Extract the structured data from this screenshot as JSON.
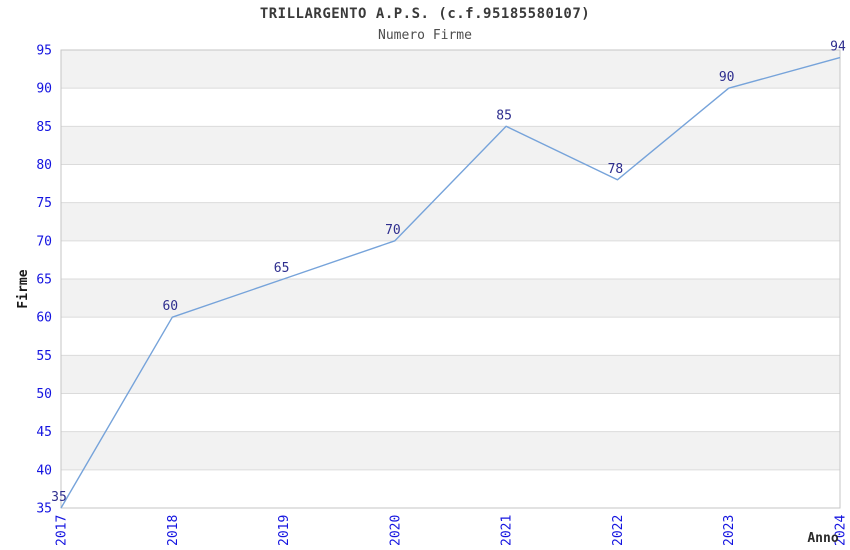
{
  "header": {
    "title": "TRILLARGENTO A.P.S. (c.f.95185580107)",
    "subtitle": "Numero Firme"
  },
  "chart_data": {
    "type": "line",
    "title": "TRILLARGENTO A.P.S. (c.f.95185580107)",
    "subtitle": "Numero Firme",
    "categories": [
      "2017",
      "2018",
      "2019",
      "2020",
      "2021",
      "2022",
      "2023",
      "2024"
    ],
    "values": [
      35,
      60,
      65,
      70,
      85,
      78,
      90,
      94
    ],
    "xlabel": "Anno",
    "ylabel": "Firme",
    "ylim": [
      35,
      95
    ],
    "ytick_step": 5,
    "grid": true,
    "legend": "none",
    "colors": {
      "line": "#76a3da",
      "data_label": "#2e2e8e",
      "tick_label": "#1414e0",
      "band": "#f2f2f2",
      "gridline": "#dbdbdb",
      "border": "#c6c6c6",
      "background": "#ffffff"
    }
  }
}
